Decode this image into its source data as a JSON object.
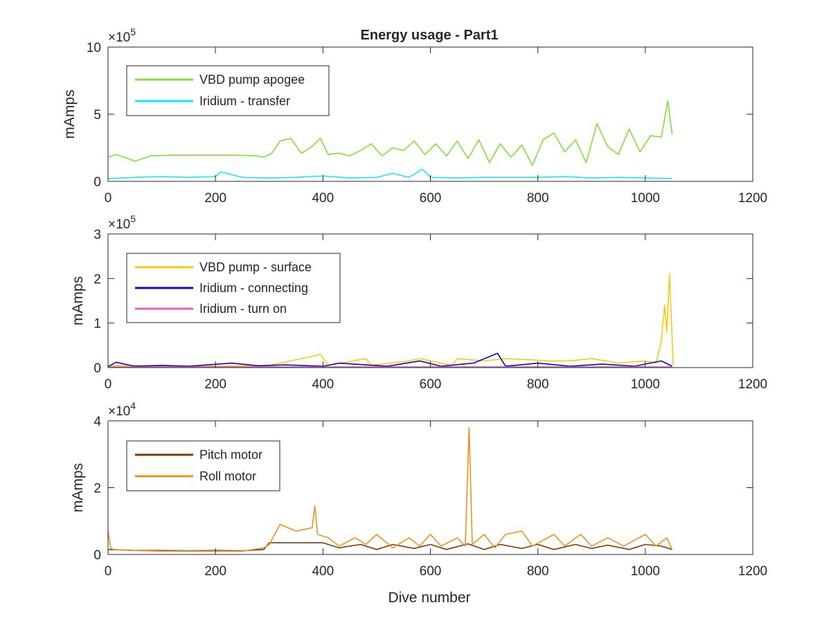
{
  "figure": {
    "title": "Energy usage - Part1",
    "xlabel": "Dive number"
  },
  "chart_data": [
    {
      "type": "line",
      "ylabel": "mAmps",
      "xlim": [
        0,
        1200
      ],
      "ylim": [
        0,
        1000000
      ],
      "x_ticks": [
        "0",
        "200",
        "400",
        "600",
        "800",
        "1000",
        "1200"
      ],
      "y_ticks": [
        "0",
        "5",
        "10"
      ],
      "y_tick_values": [
        0,
        500000,
        1000000
      ],
      "exponent": "5",
      "legend_location": "top-left",
      "series": [
        {
          "name": "VBD pump apogee",
          "color": "#7ee232",
          "x": [
            0,
            15,
            30,
            50,
            80,
            120,
            160,
            200,
            240,
            275,
            290,
            305,
            320,
            340,
            360,
            380,
            395,
            410,
            430,
            450,
            470,
            490,
            510,
            530,
            550,
            570,
            590,
            610,
            630,
            650,
            670,
            690,
            710,
            730,
            750,
            770,
            790,
            810,
            830,
            850,
            870,
            890,
            910,
            930,
            950,
            970,
            990,
            1010,
            1030,
            1042,
            1050
          ],
          "y": [
            180000,
            200000,
            180000,
            150000,
            190000,
            195000,
            195000,
            195000,
            195000,
            190000,
            180000,
            210000,
            300000,
            320000,
            210000,
            260000,
            320000,
            200000,
            210000,
            190000,
            230000,
            280000,
            190000,
            250000,
            230000,
            300000,
            200000,
            280000,
            190000,
            300000,
            170000,
            310000,
            140000,
            280000,
            180000,
            270000,
            120000,
            310000,
            360000,
            220000,
            310000,
            140000,
            430000,
            260000,
            200000,
            390000,
            220000,
            340000,
            330000,
            600000,
            350000
          ]
        },
        {
          "name": "Iridium - transfer",
          "color": "#19e8f0",
          "x": [
            0,
            50,
            100,
            150,
            200,
            210,
            250,
            300,
            350,
            400,
            450,
            500,
            530,
            560,
            585,
            600,
            650,
            700,
            750,
            800,
            850,
            900,
            950,
            1000,
            1050
          ],
          "y": [
            20000,
            30000,
            35000,
            30000,
            35000,
            70000,
            30000,
            25000,
            30000,
            40000,
            25000,
            30000,
            60000,
            30000,
            90000,
            30000,
            25000,
            30000,
            30000,
            30000,
            35000,
            25000,
            30000,
            25000,
            20000
          ]
        }
      ]
    },
    {
      "type": "line",
      "ylabel": "mAmps",
      "xlim": [
        0,
        1200
      ],
      "ylim": [
        0,
        300000
      ],
      "x_ticks": [
        "0",
        "200",
        "400",
        "600",
        "800",
        "1000",
        "1200"
      ],
      "y_ticks": [
        "0",
        "1",
        "2",
        "3"
      ],
      "y_tick_values": [
        0,
        100000,
        200000,
        300000
      ],
      "exponent": "5",
      "legend_location": "top-left",
      "series": [
        {
          "name": "VBD pump - surface",
          "color": "#f5cc10",
          "x": [
            0,
            100,
            200,
            300,
            380,
            395,
            410,
            480,
            490,
            560,
            580,
            640,
            650,
            700,
            740,
            780,
            820,
            860,
            900,
            950,
            1000,
            1020,
            1030,
            1036,
            1040,
            1045,
            1048,
            1052
          ],
          "y": [
            5000,
            4000,
            3000,
            5000,
            25000,
            30000,
            5000,
            20000,
            5000,
            15000,
            20000,
            5000,
            20000,
            15000,
            20000,
            18000,
            15000,
            15000,
            20000,
            10000,
            15000,
            10000,
            60000,
            140000,
            80000,
            210000,
            120000,
            5000
          ]
        },
        {
          "name": "Iridium - connecting",
          "color": "#0a0ab4",
          "x": [
            0,
            15,
            50,
            100,
            150,
            230,
            280,
            330,
            400,
            430,
            520,
            580,
            620,
            680,
            725,
            740,
            800,
            860,
            920,
            980,
            1000,
            1030,
            1050
          ],
          "y": [
            2000,
            12000,
            3000,
            5000,
            3000,
            10000,
            4000,
            6000,
            3000,
            10000,
            3000,
            15000,
            3000,
            10000,
            32000,
            3000,
            10000,
            3000,
            8000,
            3000,
            8000,
            15000,
            3000
          ]
        },
        {
          "name": "Iridium - turn on",
          "color": "#e85cc3",
          "x": [
            0,
            200,
            400,
            600,
            800,
            1000,
            1050
          ],
          "y": [
            1500,
            1500,
            1500,
            1500,
            1500,
            1500,
            1500
          ]
        }
      ]
    },
    {
      "type": "line",
      "ylabel": "mAmps",
      "xlabel": "Dive number",
      "xlim": [
        0,
        1200
      ],
      "ylim": [
        0,
        40000
      ],
      "x_ticks": [
        "0",
        "200",
        "400",
        "600",
        "800",
        "1000",
        "1200"
      ],
      "y_ticks": [
        "0",
        "2",
        "4"
      ],
      "y_tick_values": [
        0,
        20000,
        40000
      ],
      "exponent": "4",
      "legend_location": "top-left",
      "series": [
        {
          "name": "Pitch motor",
          "color": "#7a3a10",
          "x": [
            0,
            50,
            100,
            150,
            200,
            250,
            290,
            300,
            350,
            400,
            430,
            470,
            500,
            530,
            570,
            600,
            630,
            670,
            700,
            730,
            770,
            800,
            830,
            870,
            900,
            930,
            970,
            1000,
            1030,
            1050
          ],
          "y": [
            1500,
            1200,
            1200,
            1100,
            1200,
            1100,
            1500,
            3500,
            3500,
            3500,
            2000,
            3000,
            1500,
            3000,
            1800,
            3000,
            1500,
            3200,
            1500,
            3000,
            1800,
            3000,
            1500,
            3000,
            1800,
            2800,
            1500,
            3000,
            2500,
            1500
          ]
        },
        {
          "name": "Roll motor",
          "color": "#f0901a",
          "x": [
            0,
            5,
            10,
            40,
            100,
            150,
            200,
            250,
            290,
            300,
            320,
            350,
            380,
            385,
            390,
            410,
            430,
            460,
            480,
            500,
            530,
            560,
            580,
            600,
            620,
            650,
            665,
            672,
            678,
            700,
            720,
            740,
            770,
            790,
            830,
            850,
            880,
            900,
            930,
            960,
            1000,
            1020,
            1040,
            1050
          ],
          "y": [
            7000,
            2000,
            1500,
            1200,
            1000,
            1000,
            1000,
            1000,
            2000,
            3000,
            9000,
            7000,
            8000,
            14500,
            6000,
            5000,
            2500,
            5000,
            3000,
            6000,
            2000,
            5000,
            2500,
            6000,
            2500,
            5000,
            2500,
            38000,
            3000,
            6000,
            2000,
            6000,
            7000,
            2500,
            6000,
            2500,
            6000,
            2500,
            5000,
            2500,
            6000,
            2500,
            5000,
            1500
          ]
        }
      ]
    }
  ]
}
